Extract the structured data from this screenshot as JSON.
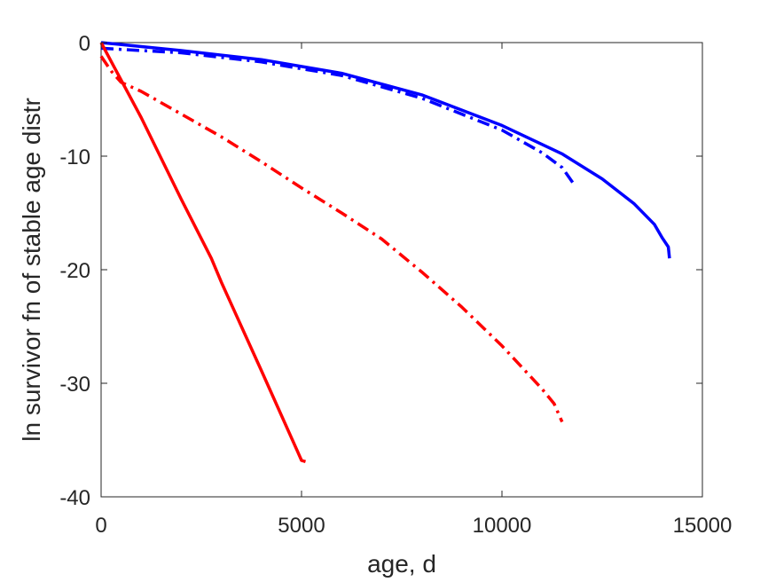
{
  "chart_data": {
    "type": "line",
    "xlabel": "age, d",
    "ylabel": "ln survivor fn of stable age distr",
    "xlim": [
      0,
      15000
    ],
    "ylim": [
      -40,
      0
    ],
    "xticks": [
      0,
      5000,
      10000,
      15000
    ],
    "yticks": [
      0,
      -10,
      -20,
      -30,
      -40
    ],
    "xtick_labels": [
      "0",
      "5000",
      "10000",
      "15000"
    ],
    "ytick_labels": [
      "0",
      "-10",
      "-20",
      "-30",
      "-40"
    ],
    "grid": false,
    "legend": "none",
    "series": [
      {
        "color": "#0000ff",
        "style": "solid",
        "points": [
          [
            0,
            0
          ],
          [
            2000,
            -0.7
          ],
          [
            4000,
            -1.5
          ],
          [
            6000,
            -2.7
          ],
          [
            8000,
            -4.6
          ],
          [
            10000,
            -7.3
          ],
          [
            11500,
            -9.8
          ],
          [
            12500,
            -12.0
          ],
          [
            13300,
            -14.2
          ],
          [
            13800,
            -16.0
          ],
          [
            14000,
            -17.2
          ],
          [
            14150,
            -18.0
          ],
          [
            14180,
            -19.0
          ]
        ]
      },
      {
        "color": "#0000ff",
        "style": "dashdot",
        "points": [
          [
            0,
            -0.5
          ],
          [
            2000,
            -0.9
          ],
          [
            4000,
            -1.7
          ],
          [
            6000,
            -2.9
          ],
          [
            8000,
            -4.9
          ],
          [
            10000,
            -7.7
          ],
          [
            11000,
            -9.7
          ],
          [
            11500,
            -11.0
          ],
          [
            11800,
            -12.5
          ]
        ]
      },
      {
        "color": "#ff0000",
        "style": "solid",
        "points": [
          [
            0,
            0
          ],
          [
            1000,
            -6.6
          ],
          [
            2000,
            -13.8
          ],
          [
            2750,
            -19.0
          ],
          [
            3000,
            -21.1
          ],
          [
            4000,
            -28.9
          ],
          [
            4900,
            -36.0
          ],
          [
            5000,
            -36.8
          ],
          [
            5100,
            -36.9
          ]
        ]
      },
      {
        "color": "#ff0000",
        "style": "dashdot",
        "points": [
          [
            0,
            -1.2
          ],
          [
            250,
            -2.5
          ],
          [
            500,
            -3.5
          ],
          [
            1000,
            -4.3
          ],
          [
            2000,
            -6.3
          ],
          [
            3000,
            -8.3
          ],
          [
            4000,
            -10.5
          ],
          [
            5000,
            -12.8
          ],
          [
            6000,
            -15.0
          ],
          [
            7000,
            -17.3
          ],
          [
            8000,
            -20.2
          ],
          [
            9000,
            -23.3
          ],
          [
            10000,
            -26.7
          ],
          [
            11000,
            -30.5
          ],
          [
            11300,
            -31.8
          ],
          [
            11500,
            -33.4
          ]
        ]
      }
    ]
  }
}
